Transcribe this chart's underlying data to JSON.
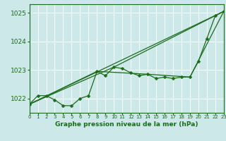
{
  "bg_color": "#cce8e8",
  "grid_color": "#ffffff",
  "line_color": "#1a6b1a",
  "x_min": 0,
  "x_max": 23,
  "y_min": 1021.5,
  "y_max": 1025.3,
  "y_ticks": [
    1022,
    1023,
    1024,
    1025
  ],
  "x_ticks": [
    0,
    1,
    2,
    3,
    4,
    5,
    6,
    7,
    8,
    9,
    10,
    11,
    12,
    13,
    14,
    15,
    16,
    17,
    18,
    19,
    20,
    21,
    22,
    23
  ],
  "xlabel": "Graphe pression niveau de la mer (hPa)",
  "series": [
    [
      0,
      1021.8
    ],
    [
      1,
      1022.1
    ],
    [
      2,
      1022.1
    ],
    [
      3,
      1021.95
    ],
    [
      4,
      1021.75
    ],
    [
      5,
      1021.75
    ],
    [
      6,
      1022.0
    ],
    [
      7,
      1022.1
    ],
    [
      8,
      1022.95
    ],
    [
      9,
      1022.8
    ],
    [
      10,
      1023.1
    ],
    [
      11,
      1023.05
    ],
    [
      12,
      1022.9
    ],
    [
      13,
      1022.8
    ],
    [
      14,
      1022.85
    ],
    [
      15,
      1022.7
    ],
    [
      16,
      1022.75
    ],
    [
      17,
      1022.7
    ],
    [
      18,
      1022.75
    ],
    [
      19,
      1022.75
    ],
    [
      20,
      1023.3
    ],
    [
      21,
      1024.1
    ],
    [
      22,
      1024.9
    ],
    [
      23,
      1025.05
    ]
  ],
  "line_straight": [
    [
      0,
      1021.8
    ],
    [
      23,
      1025.05
    ]
  ],
  "line_upper": [
    [
      0,
      1021.8
    ],
    [
      10,
      1023.1
    ],
    [
      23,
      1025.05
    ]
  ],
  "line_lower": [
    [
      0,
      1021.8
    ],
    [
      8,
      1022.95
    ],
    [
      14,
      1022.85
    ],
    [
      19,
      1022.75
    ],
    [
      23,
      1025.05
    ]
  ]
}
